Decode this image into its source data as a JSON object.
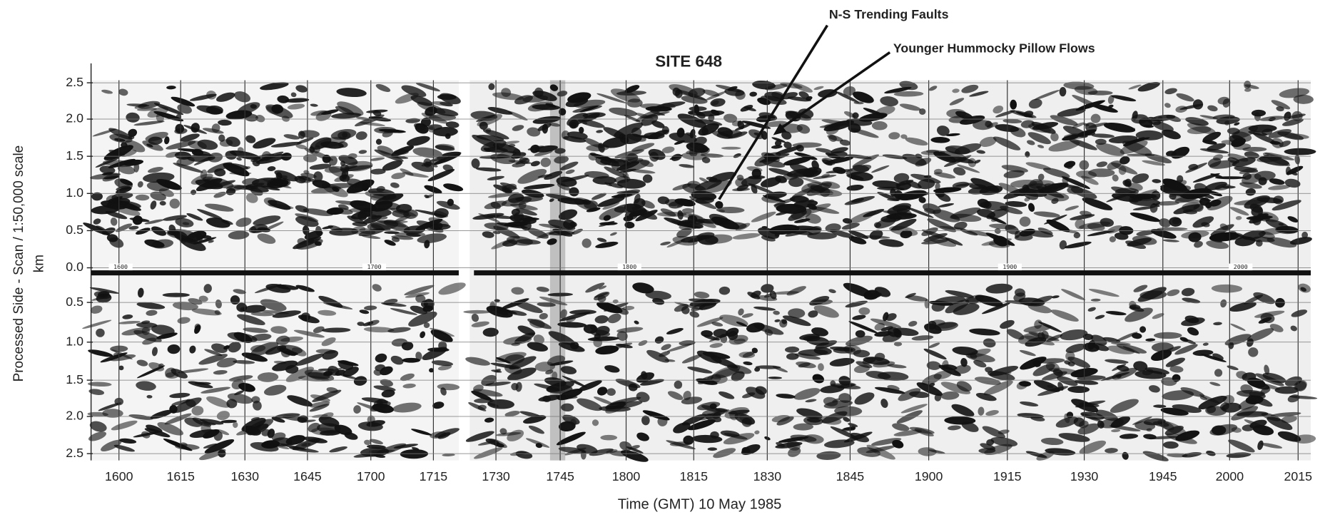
{
  "figure": {
    "title": "SITE 648",
    "annotations": [
      "N-S Trending Faults",
      "Younger Hummocky Pillow Flows"
    ],
    "y_axis": {
      "label": "Processed Side - Scan / 1:50,000 scale",
      "unit": "km",
      "ticks": [
        "2.5",
        "2.0",
        "1.5",
        "1.0",
        "0.5",
        "0.0",
        "0.5",
        "1.0",
        "1.5",
        "2.0",
        "2.5"
      ]
    },
    "x_axis": {
      "label": "Time (GMT) 10 May 1985",
      "ticks": [
        "1600",
        "1615",
        "1630",
        "1645",
        "1700",
        "1715",
        "1730",
        "1745",
        "1800",
        "1815",
        "1830",
        "1845",
        "1900",
        "1915",
        "1930",
        "1945",
        "2000",
        "2015"
      ]
    },
    "track_labels": [
      "1600",
      "1700",
      "1800",
      "1900",
      "2000"
    ]
  }
}
